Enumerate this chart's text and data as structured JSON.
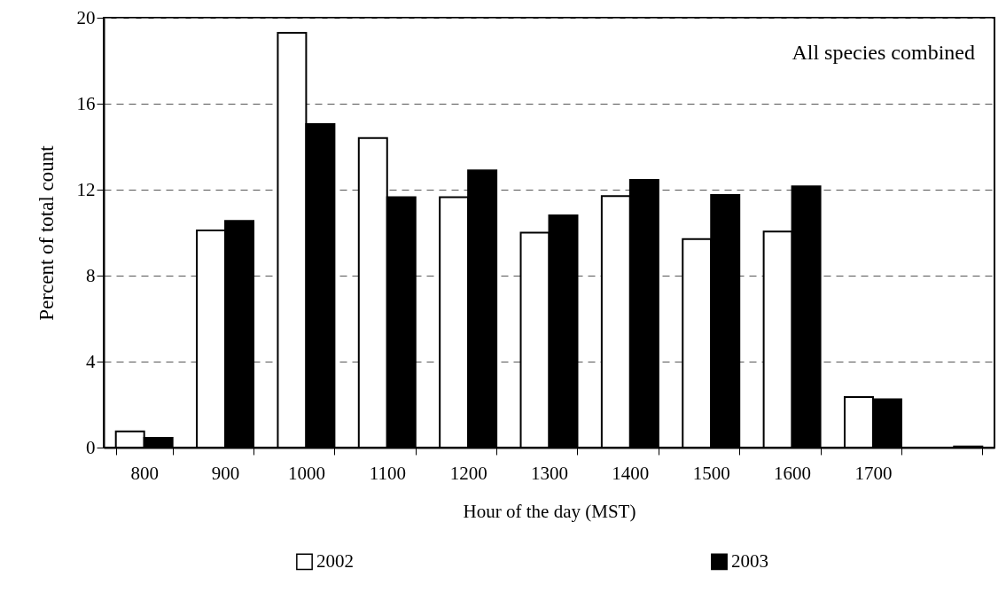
{
  "chart_data": {
    "type": "bar",
    "xlabel": "Hour of the day (MST)",
    "ylabel": "Percent of total count",
    "categories": [
      "800",
      "900",
      "1000",
      "1100",
      "1200",
      "1300",
      "1400",
      "1500",
      "1600",
      "1700",
      null
    ],
    "series": [
      {
        "name": "2002",
        "color": "#ffffff",
        "values": [
          0.75,
          10.1,
          19.3,
          14.4,
          11.65,
          10.0,
          11.7,
          9.7,
          10.05,
          2.35,
          null
        ]
      },
      {
        "name": "2003",
        "color": "#000000",
        "values": [
          0.45,
          10.55,
          15.05,
          11.65,
          12.9,
          10.8,
          12.45,
          11.75,
          12.15,
          2.25,
          0.05
        ]
      }
    ],
    "ylim": [
      0,
      20
    ],
    "yticks": [
      0,
      4,
      8,
      12,
      16,
      20
    ],
    "grid": "y",
    "legend": "bottom",
    "annotations": [
      "All species combined"
    ]
  }
}
